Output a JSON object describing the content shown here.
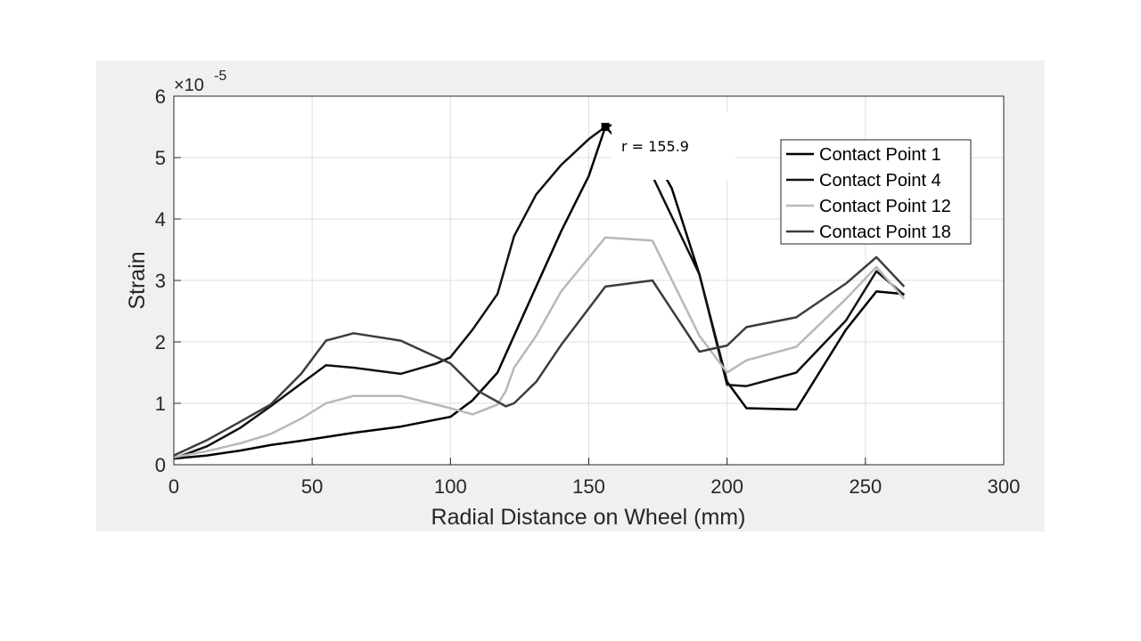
{
  "chart_data": {
    "type": "line",
    "title": "",
    "xlabel": "Radial Distance on Wheel (mm)",
    "ylabel": "Strain",
    "xlim": [
      0,
      300
    ],
    "ylim": [
      0,
      6
    ],
    "x_ticks": [
      "0",
      "50",
      "100",
      "150",
      "200",
      "250",
      "300"
    ],
    "y_ticks": [
      "0",
      "1",
      "2",
      "3",
      "4",
      "5",
      "6"
    ],
    "y_exponent_label": "×10",
    "y_exponent_power": "-5",
    "grid": true,
    "legend_position": "top-right",
    "series": [
      {
        "name": "Contact Point 1",
        "color": "#000000",
        "x": [
          0,
          12,
          24,
          35,
          46,
          55,
          65,
          82,
          100,
          108,
          117,
          123,
          131,
          140,
          150,
          156,
          160,
          170,
          180,
          190,
          200,
          207,
          225,
          243,
          254,
          264
        ],
        "y": [
          0.1,
          0.15,
          0.23,
          0.32,
          0.39,
          0.45,
          0.52,
          0.62,
          0.78,
          1.05,
          1.5,
          2.1,
          2.9,
          3.8,
          4.7,
          5.5,
          5.55,
          5.3,
          4.5,
          3.1,
          1.35,
          0.92,
          0.9,
          2.2,
          2.82,
          2.78
        ]
      },
      {
        "name": "Contact Point 4",
        "color": "#111111",
        "x": [
          0,
          12,
          24,
          35,
          46,
          55,
          65,
          82,
          95,
          100,
          108,
          117,
          123,
          131,
          140,
          150,
          156,
          173,
          190,
          200,
          207,
          225,
          243,
          254,
          264
        ],
        "y": [
          0.1,
          0.3,
          0.6,
          0.95,
          1.32,
          1.62,
          1.58,
          1.48,
          1.65,
          1.75,
          2.2,
          2.78,
          3.72,
          4.4,
          4.88,
          5.3,
          5.5,
          4.7,
          3.1,
          1.3,
          1.28,
          1.5,
          2.35,
          3.15,
          2.76
        ]
      },
      {
        "name": "Contact Point 12",
        "color": "#b8b8b8",
        "x": [
          0,
          12,
          24,
          35,
          46,
          55,
          65,
          82,
          100,
          108,
          117,
          120,
          123,
          131,
          140,
          156,
          173,
          190,
          200,
          207,
          225,
          243,
          254,
          264
        ],
        "y": [
          0.12,
          0.22,
          0.35,
          0.5,
          0.75,
          1.0,
          1.12,
          1.12,
          0.92,
          0.82,
          0.98,
          1.2,
          1.58,
          2.1,
          2.82,
          3.7,
          3.65,
          2.1,
          1.5,
          1.7,
          1.92,
          2.7,
          3.22,
          2.7
        ]
      },
      {
        "name": "Contact Point 18",
        "color": "#3c3c3c",
        "x": [
          0,
          12,
          24,
          35,
          46,
          55,
          65,
          82,
          100,
          110,
          120,
          123,
          131,
          140,
          156,
          173,
          190,
          200,
          207,
          225,
          243,
          254,
          264
        ],
        "y": [
          0.15,
          0.4,
          0.7,
          0.98,
          1.48,
          2.02,
          2.14,
          2.02,
          1.65,
          1.2,
          0.95,
          1.0,
          1.35,
          1.95,
          2.9,
          3.0,
          1.84,
          1.94,
          2.24,
          2.4,
          2.95,
          3.38,
          2.9
        ]
      }
    ],
    "annotation": {
      "text": "r = 155.9",
      "x": 156,
      "y": 5.5
    }
  },
  "styles": {
    "axes_background": "#ffffff",
    "figure_background": "#f0f0f0",
    "grid_color": "#dfdfdf",
    "axis_color": "#262626"
  }
}
